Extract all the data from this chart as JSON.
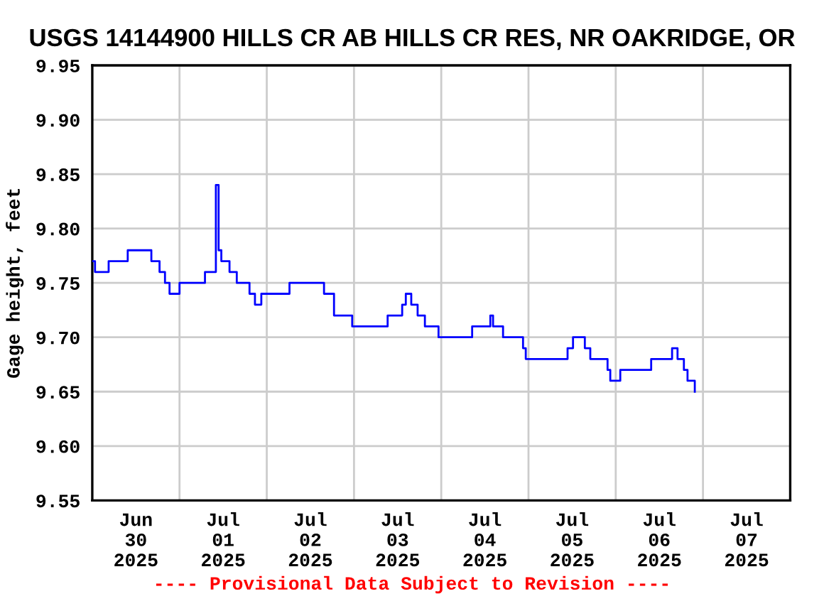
{
  "chart_data": {
    "type": "step",
    "title": "USGS 14144900 HILLS CR AB HILLS CR RES, NR OAKRIDGE, OR",
    "ylabel": "Gage height, feet",
    "annotations": [
      "---- Provisional Data Subject to Revision ----"
    ],
    "series": [
      {
        "color": "#0000ff",
        "x": [
          "2025-06-30T00:00",
          "2025-06-30T00:45",
          "2025-06-30T03:45",
          "2025-06-30T04:30",
          "2025-06-30T09:45",
          "2025-06-30T14:45",
          "2025-06-30T16:15",
          "2025-06-30T18:30",
          "2025-06-30T20:00",
          "2025-06-30T21:15",
          "2025-07-01T00:00",
          "2025-07-01T05:00",
          "2025-07-01T07:00",
          "2025-07-01T09:45",
          "2025-07-01T10:00",
          "2025-07-01T10:45",
          "2025-07-01T11:30",
          "2025-07-01T13:45",
          "2025-07-01T15:45",
          "2025-07-01T19:15",
          "2025-07-01T20:45",
          "2025-07-01T22:30",
          "2025-07-02T02:15",
          "2025-07-02T06:15",
          "2025-07-02T14:45",
          "2025-07-02T15:45",
          "2025-07-02T18:30",
          "2025-07-02T23:30",
          "2025-07-03T05:30",
          "2025-07-03T09:15",
          "2025-07-03T13:15",
          "2025-07-03T14:15",
          "2025-07-03T15:45",
          "2025-07-03T17:30",
          "2025-07-03T19:30",
          "2025-07-03T23:15",
          "2025-07-04T07:00",
          "2025-07-04T08:30",
          "2025-07-04T13:30",
          "2025-07-04T14:15",
          "2025-07-04T17:00",
          "2025-07-04T22:30",
          "2025-07-04T23:15",
          "2025-07-05T09:45",
          "2025-07-05T10:45",
          "2025-07-05T12:15",
          "2025-07-05T15:30",
          "2025-07-05T17:00",
          "2025-07-05T21:45",
          "2025-07-05T22:30",
          "2025-07-06T01:15",
          "2025-07-06T09:00",
          "2025-07-06T09:45",
          "2025-07-06T14:45",
          "2025-07-06T15:30",
          "2025-07-06T17:00",
          "2025-07-06T18:45",
          "2025-07-06T19:45",
          "2025-07-06T21:15",
          "2025-07-06T21:45"
        ],
        "values": [
          9.77,
          9.76,
          9.76,
          9.77,
          9.78,
          9.78,
          9.77,
          9.76,
          9.75,
          9.74,
          9.75,
          9.75,
          9.76,
          9.76,
          9.84,
          9.78,
          9.77,
          9.76,
          9.75,
          9.74,
          9.73,
          9.74,
          9.74,
          9.75,
          9.75,
          9.74,
          9.72,
          9.71,
          9.71,
          9.72,
          9.73,
          9.74,
          9.73,
          9.72,
          9.71,
          9.7,
          9.7,
          9.71,
          9.72,
          9.71,
          9.7,
          9.69,
          9.68,
          9.68,
          9.69,
          9.7,
          9.69,
          9.68,
          9.67,
          9.66,
          9.67,
          9.67,
          9.68,
          9.68,
          9.69,
          9.68,
          9.67,
          9.66,
          9.66,
          9.65
        ]
      }
    ],
    "xlim": [
      "2025-06-30T00:00",
      "2025-07-08T00:00"
    ],
    "xticks": [
      {
        "value": "2025-07-01T00:00",
        "label": null
      },
      {
        "value": "2025-07-02T00:00",
        "label": null
      },
      {
        "value": "2025-07-03T00:00",
        "label": null
      },
      {
        "value": "2025-07-04T00:00",
        "label": null
      },
      {
        "value": "2025-07-05T00:00",
        "label": null
      },
      {
        "value": "2025-07-06T00:00",
        "label": null
      },
      {
        "value": "2025-07-07T00:00",
        "label": null
      },
      {
        "value": "2025-06-30T12:00",
        "label": "Jun\n30\n2025"
      },
      {
        "value": "2025-07-01T12:00",
        "label": "Jul\n01\n2025"
      },
      {
        "value": "2025-07-02T12:00",
        "label": "Jul\n02\n2025"
      },
      {
        "value": "2025-07-03T12:00",
        "label": "Jul\n03\n2025"
      },
      {
        "value": "2025-07-04T12:00",
        "label": "Jul\n04\n2025"
      },
      {
        "value": "2025-07-05T12:00",
        "label": "Jul\n05\n2025"
      },
      {
        "value": "2025-07-06T12:00",
        "label": "Jul\n06\n2025"
      },
      {
        "value": "2025-07-07T12:00",
        "label": "Jul\n07\n2025"
      }
    ],
    "ylim": [
      9.55,
      9.95
    ],
    "yticks": [
      9.55,
      {
        "value": 9.6,
        "label": "9.60"
      },
      9.65,
      {
        "value": 9.7,
        "label": "9.70"
      },
      9.75,
      {
        "value": 9.8,
        "label": "9.80"
      },
      9.85,
      {
        "value": 9.9,
        "label": "9.90"
      },
      9.95
    ],
    "grid": true,
    "line_style": "solid",
    "marker": "none"
  }
}
